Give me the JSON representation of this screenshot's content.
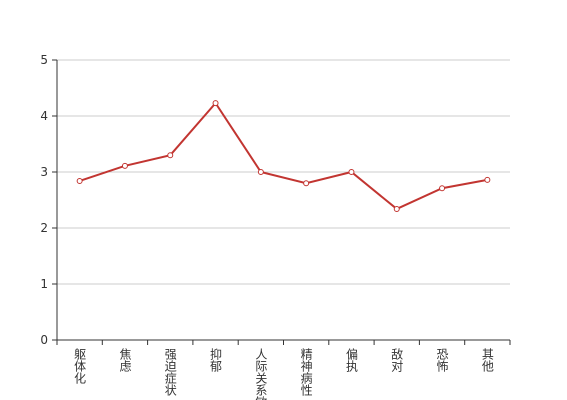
{
  "chart_data": {
    "type": "line",
    "categories": [
      "躯体化",
      "焦虑",
      "强迫症状",
      "抑郁",
      "人际关系敏感",
      "精神病性",
      "偏执",
      "敌对",
      "恐怖",
      "其他"
    ],
    "series": [
      {
        "color": "#c23531",
        "values": [
          2.84,
          3.11,
          3.3,
          4.23,
          3.0,
          2.8,
          3.0,
          2.34,
          2.71,
          2.86
        ]
      }
    ],
    "ylim": [
      0,
      5
    ],
    "yticks": [
      0,
      1,
      2,
      3,
      4,
      5
    ],
    "grid": true
  }
}
